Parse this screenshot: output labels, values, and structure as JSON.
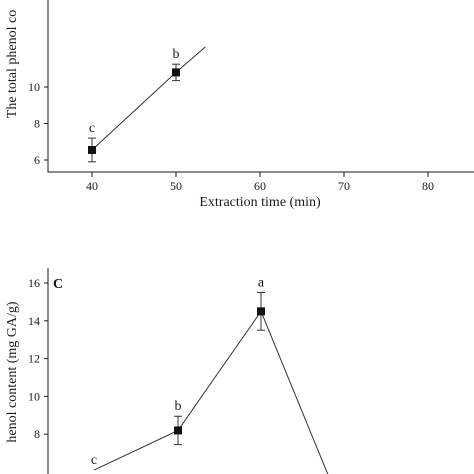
{
  "chart_data": [
    {
      "type": "line",
      "panel": "",
      "xlabel": "Extraction time (min)",
      "ylabel": "The total phenol co",
      "xlim": [
        35,
        85
      ],
      "ylim": [
        5,
        12
      ],
      "x_ticks": [
        "40",
        "50",
        "60",
        "70",
        "80"
      ],
      "y_ticks": [
        "6",
        "8",
        "10"
      ],
      "grid": false,
      "series": [
        {
          "x": [
            40,
            50,
            53.5
          ],
          "y": [
            6.55,
            10.8,
            12.2
          ],
          "error": [
            0.65,
            0.45,
            0
          ],
          "markers": [
            true,
            true,
            false
          ],
          "labels": [
            "c",
            "b",
            ""
          ]
        }
      ]
    },
    {
      "type": "line",
      "panel": "C",
      "xlabel": "",
      "ylabel": "henol content (mg GA/g)",
      "ylim": [
        5.5,
        17
      ],
      "y_ticks": [
        "8",
        "10",
        "12",
        "14",
        "16"
      ],
      "grid": false,
      "series": [
        {
          "x": [
            1,
            2,
            3,
            4
          ],
          "y": [
            6.1,
            8.2,
            14.5,
            5.6
          ],
          "error": [
            0,
            0.75,
            1.0,
            0
          ],
          "markers": [
            false,
            true,
            true,
            false
          ],
          "labels": [
            "c",
            "b",
            "a",
            ""
          ]
        }
      ]
    }
  ]
}
